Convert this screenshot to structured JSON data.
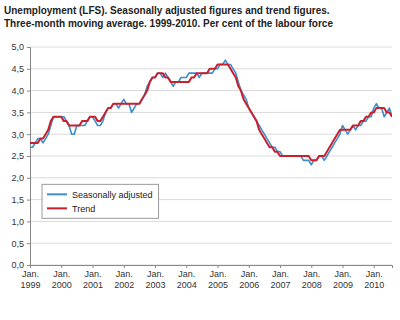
{
  "chart_data": {
    "type": "line",
    "title": "Unemployment (LFS). Seasonally adjusted figures and trend figures.",
    "subtitle": "Three-month moving average. 1999-2010. Per cent of the labour force",
    "categories": [
      "Jan. 1999",
      null,
      null,
      null,
      null,
      null,
      null,
      null,
      null,
      null,
      null,
      null,
      "Jan. 2000",
      null,
      null,
      null,
      null,
      null,
      null,
      null,
      null,
      null,
      null,
      null,
      "Jan. 2001",
      null,
      null,
      null,
      null,
      null,
      null,
      null,
      null,
      null,
      null,
      null,
      "Jan. 2002",
      null,
      null,
      null,
      null,
      null,
      null,
      null,
      null,
      null,
      null,
      null,
      "Jan. 2003",
      null,
      null,
      null,
      null,
      null,
      null,
      null,
      null,
      null,
      null,
      null,
      "Jan. 2004",
      null,
      null,
      null,
      null,
      null,
      null,
      null,
      null,
      null,
      null,
      null,
      "Jan. 2005",
      null,
      null,
      null,
      null,
      null,
      null,
      null,
      null,
      null,
      null,
      null,
      "Jan. 2006",
      null,
      null,
      null,
      null,
      null,
      null,
      null,
      null,
      null,
      null,
      null,
      "Jan. 2007",
      null,
      null,
      null,
      null,
      null,
      null,
      null,
      null,
      null,
      null,
      null,
      "Jan. 2008",
      null,
      null,
      null,
      null,
      null,
      null,
      null,
      null,
      null,
      null,
      null,
      "Jan. 2009",
      null,
      null,
      null,
      null,
      null,
      null,
      null,
      null,
      null,
      null,
      null,
      "Jan. 2010",
      null,
      null,
      null,
      null,
      null,
      null,
      null
    ],
    "series": [
      {
        "name": "Seasonally adjusted",
        "color": "#3d8ecb",
        "values": [
          2.7,
          2.7,
          2.8,
          2.9,
          2.9,
          2.8,
          2.9,
          3.0,
          3.2,
          3.4,
          3.4,
          3.4,
          3.4,
          3.4,
          3.3,
          3.2,
          3.0,
          3.0,
          3.2,
          3.2,
          3.2,
          3.2,
          3.3,
          3.4,
          3.4,
          3.3,
          3.2,
          3.2,
          3.3,
          3.5,
          3.6,
          3.6,
          3.7,
          3.7,
          3.6,
          3.7,
          3.8,
          3.7,
          3.7,
          3.5,
          3.6,
          3.7,
          3.7,
          3.8,
          3.9,
          4.1,
          4.2,
          4.3,
          4.3,
          4.4,
          4.4,
          4.3,
          4.4,
          4.3,
          4.2,
          4.1,
          4.2,
          4.2,
          4.3,
          4.3,
          4.3,
          4.4,
          4.4,
          4.4,
          4.4,
          4.3,
          4.4,
          4.4,
          4.4,
          4.4,
          4.4,
          4.5,
          4.5,
          4.6,
          4.6,
          4.7,
          4.6,
          4.6,
          4.5,
          4.4,
          4.2,
          4.0,
          3.9,
          3.8,
          3.6,
          3.5,
          3.4,
          3.3,
          3.2,
          3.1,
          3.0,
          2.9,
          2.8,
          2.7,
          2.7,
          2.6,
          2.6,
          2.5,
          2.5,
          2.5,
          2.5,
          2.5,
          2.5,
          2.5,
          2.5,
          2.4,
          2.4,
          2.4,
          2.3,
          2.4,
          2.4,
          2.5,
          2.5,
          2.4,
          2.5,
          2.6,
          2.7,
          2.8,
          2.9,
          3.0,
          3.2,
          3.1,
          3.0,
          3.1,
          3.2,
          3.1,
          3.2,
          3.2,
          3.3,
          3.3,
          3.4,
          3.4,
          3.6,
          3.7,
          3.6,
          3.6,
          3.4,
          3.5,
          3.6,
          3.4
        ]
      },
      {
        "name": "Trend",
        "color": "#c8202c",
        "values": [
          2.8,
          2.8,
          2.8,
          2.8,
          2.9,
          2.9,
          3.0,
          3.1,
          3.3,
          3.4,
          3.4,
          3.4,
          3.4,
          3.3,
          3.3,
          3.2,
          3.2,
          3.2,
          3.2,
          3.2,
          3.3,
          3.3,
          3.3,
          3.4,
          3.4,
          3.4,
          3.3,
          3.3,
          3.4,
          3.5,
          3.6,
          3.6,
          3.7,
          3.7,
          3.7,
          3.7,
          3.7,
          3.7,
          3.7,
          3.7,
          3.7,
          3.7,
          3.7,
          3.8,
          3.9,
          4.0,
          4.2,
          4.3,
          4.3,
          4.4,
          4.4,
          4.4,
          4.3,
          4.3,
          4.2,
          4.2,
          4.2,
          4.2,
          4.2,
          4.2,
          4.2,
          4.2,
          4.3,
          4.3,
          4.4,
          4.4,
          4.4,
          4.4,
          4.4,
          4.5,
          4.5,
          4.5,
          4.6,
          4.6,
          4.6,
          4.6,
          4.6,
          4.5,
          4.4,
          4.3,
          4.1,
          4.0,
          3.8,
          3.7,
          3.6,
          3.5,
          3.4,
          3.3,
          3.1,
          3.0,
          2.9,
          2.8,
          2.7,
          2.7,
          2.6,
          2.6,
          2.5,
          2.5,
          2.5,
          2.5,
          2.5,
          2.5,
          2.5,
          2.5,
          2.5,
          2.5,
          2.5,
          2.5,
          2.4,
          2.4,
          2.4,
          2.5,
          2.5,
          2.5,
          2.6,
          2.7,
          2.8,
          2.9,
          3.0,
          3.1,
          3.1,
          3.1,
          3.1,
          3.1,
          3.2,
          3.2,
          3.2,
          3.3,
          3.3,
          3.4,
          3.4,
          3.5,
          3.5,
          3.6,
          3.6,
          3.6,
          3.6,
          3.5,
          3.5,
          3.4
        ]
      }
    ],
    "ylim": [
      0,
      5
    ],
    "yticks": [
      {
        "value": 0,
        "label": "0,0"
      },
      {
        "value": 0.5,
        "label": "0,5"
      },
      {
        "value": 1,
        "label": "1,0"
      },
      {
        "value": 1.5,
        "label": "1,5"
      },
      {
        "value": 2,
        "label": "2,0"
      },
      {
        "value": 2.5,
        "label": "2,5"
      },
      {
        "value": 3,
        "label": "3,0"
      },
      {
        "value": 3.5,
        "label": "3,5"
      },
      {
        "value": 4,
        "label": "4,0"
      },
      {
        "value": 4.5,
        "label": "4,5"
      },
      {
        "value": 5,
        "label": "5,0"
      }
    ],
    "grid": true,
    "legend": "left"
  }
}
